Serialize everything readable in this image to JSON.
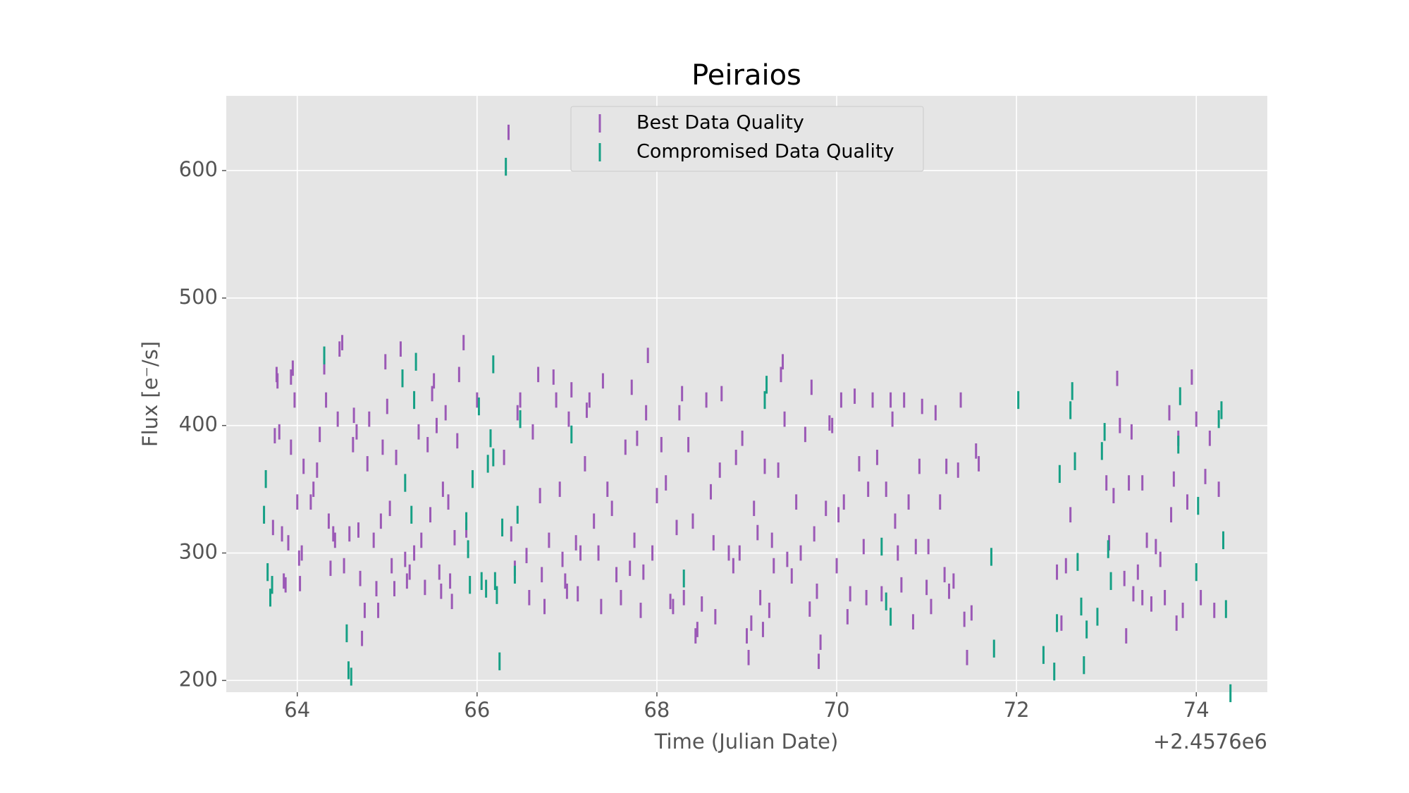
{
  "chart_data": {
    "type": "errorbar",
    "title": "Peiraios",
    "xlabel": "Time (Julian Date)",
    "ylabel": "Flux [e⁻/s]",
    "x_offset_label": "+2.4576e6",
    "xlim": [
      2457663.21,
      2457674.79
    ],
    "ylim": [
      190.8,
      658.6
    ],
    "xticks": [
      {
        "value": 2457664,
        "label": "64"
      },
      {
        "value": 2457666,
        "label": "66"
      },
      {
        "value": 2457668,
        "label": "68"
      },
      {
        "value": 2457670,
        "label": "70"
      },
      {
        "value": 2457672,
        "label": "72"
      },
      {
        "value": 2457674,
        "label": "74"
      }
    ],
    "yticks": [
      200,
      300,
      400,
      500,
      600
    ],
    "grid": true,
    "legend": "upper center",
    "series": [
      {
        "name": "Best Data Quality",
        "color": "#9b59b6",
        "yerr": 6,
        "x": [
          2457663.77,
          2457663.78,
          2457663.75,
          2457663.8,
          2457663.73,
          2457663.83,
          2457663.85,
          2457663.87,
          2457663.9,
          2457663.93,
          2457663.95,
          2457663.93,
          2457663.97,
          2457664.0,
          2457664.02,
          2457664.03,
          2457664.05,
          2457664.07,
          2457664.15,
          2457664.18,
          2457664.22,
          2457664.25,
          2457664.3,
          2457664.32,
          2457664.35,
          2457664.37,
          2457664.4,
          2457664.42,
          2457664.45,
          2457664.47,
          2457664.5,
          2457664.52,
          2457664.58,
          2457664.62,
          2457664.63,
          2457664.66,
          2457664.68,
          2457664.7,
          2457664.72,
          2457664.75,
          2457664.78,
          2457664.8,
          2457664.85,
          2457664.88,
          2457664.9,
          2457664.93,
          2457664.95,
          2457664.98,
          2457665.0,
          2457665.03,
          2457665.05,
          2457665.08,
          2457665.1,
          2457665.15,
          2457665.2,
          2457665.22,
          2457665.25,
          2457665.3,
          2457665.35,
          2457665.38,
          2457665.42,
          2457665.45,
          2457665.48,
          2457665.5,
          2457665.52,
          2457665.55,
          2457665.58,
          2457665.6,
          2457665.62,
          2457665.65,
          2457665.68,
          2457665.7,
          2457665.72,
          2457665.75,
          2457665.78,
          2457665.8,
          2457665.85,
          2457665.88,
          2457666.0,
          2457666.3,
          2457666.35,
          2457666.38,
          2457666.42,
          2457666.45,
          2457666.48,
          2457666.55,
          2457666.58,
          2457666.62,
          2457666.68,
          2457666.7,
          2457666.72,
          2457666.75,
          2457666.8,
          2457666.85,
          2457666.88,
          2457666.92,
          2457666.95,
          2457666.98,
          2457667.0,
          2457667.02,
          2457667.05,
          2457667.1,
          2457667.12,
          2457667.15,
          2457667.2,
          2457667.22,
          2457667.25,
          2457667.3,
          2457667.35,
          2457667.38,
          2457667.4,
          2457667.45,
          2457667.5,
          2457667.55,
          2457667.6,
          2457667.65,
          2457667.7,
          2457667.72,
          2457667.75,
          2457667.78,
          2457667.82,
          2457667.85,
          2457667.88,
          2457667.9,
          2457667.95,
          2457668.0,
          2457668.05,
          2457668.1,
          2457668.15,
          2457668.18,
          2457668.22,
          2457668.25,
          2457668.28,
          2457668.3,
          2457668.35,
          2457668.4,
          2457668.43,
          2457668.45,
          2457668.5,
          2457668.55,
          2457668.6,
          2457668.63,
          2457668.65,
          2457668.7,
          2457668.72,
          2457668.8,
          2457668.85,
          2457668.88,
          2457668.92,
          2457668.95,
          2457669.0,
          2457669.02,
          2457669.05,
          2457669.08,
          2457669.12,
          2457669.15,
          2457669.18,
          2457669.2,
          2457669.25,
          2457669.28,
          2457669.3,
          2457669.35,
          2457669.38,
          2457669.4,
          2457669.42,
          2457669.45,
          2457669.5,
          2457669.55,
          2457669.6,
          2457669.65,
          2457669.7,
          2457669.72,
          2457669.75,
          2457669.78,
          2457669.8,
          2457669.82,
          2457669.88,
          2457669.92,
          2457669.95,
          2457670.0,
          2457670.02,
          2457670.05,
          2457670.08,
          2457670.12,
          2457670.15,
          2457670.2,
          2457670.25,
          2457670.3,
          2457670.33,
          2457670.35,
          2457670.4,
          2457670.45,
          2457670.5,
          2457670.55,
          2457670.6,
          2457670.62,
          2457670.65,
          2457670.68,
          2457670.72,
          2457670.75,
          2457670.8,
          2457670.85,
          2457670.88,
          2457670.92,
          2457670.95,
          2457671.0,
          2457671.02,
          2457671.05,
          2457671.1,
          2457671.15,
          2457671.2,
          2457671.22,
          2457671.25,
          2457671.3,
          2457671.35,
          2457671.38,
          2457671.42,
          2457671.45,
          2457671.5,
          2457671.55,
          2457671.58,
          2457672.45,
          2457672.5,
          2457672.55,
          2457672.6,
          2457673.0,
          2457673.03,
          2457673.08,
          2457673.12,
          2457673.15,
          2457673.2,
          2457673.22,
          2457673.25,
          2457673.28,
          2457673.3,
          2457673.35,
          2457673.4,
          2457673.4,
          2457673.45,
          2457673.5,
          2457673.55,
          2457673.6,
          2457673.65,
          2457673.7,
          2457673.72,
          2457673.75,
          2457673.78,
          2457673.8,
          2457673.85,
          2457673.9,
          2457673.95,
          2457674.0,
          2457674.05,
          2457674.1,
          2457674.15,
          2457674.2,
          2457674.25
        ],
        "values": [
          440,
          435,
          392,
          395,
          320,
          315,
          278,
          275,
          308,
          438,
          445,
          383,
          420,
          340,
          296,
          276,
          300,
          368,
          340,
          350,
          365,
          393,
          446,
          420,
          325,
          288,
          315,
          310,
          405,
          460,
          465,
          290,
          315,
          385,
          408,
          395,
          318,
          280,
          233,
          255,
          370,
          405,
          310,
          272,
          255,
          325,
          383,
          450,
          415,
          335,
          290,
          272,
          375,
          460,
          295,
          278,
          285,
          300,
          395,
          310,
          273,
          385,
          330,
          425,
          435,
          400,
          285,
          270,
          350,
          410,
          340,
          278,
          262,
          312,
          388,
          440,
          465,
          318,
          420,
          375,
          630,
          315,
          288,
          410,
          420,
          298,
          265,
          395,
          440,
          345,
          283,
          258,
          310,
          438,
          420,
          350,
          295,
          278,
          270,
          405,
          428,
          308,
          268,
          300,
          370,
          412,
          420,
          325,
          300,
          258,
          435,
          350,
          335,
          283,
          265,
          383,
          288,
          430,
          310,
          390,
          255,
          285,
          410,
          455,
          300,
          345,
          385,
          355,
          262,
          258,
          320,
          410,
          425,
          265,
          385,
          325,
          235,
          240,
          260,
          420,
          348,
          308,
          250,
          365,
          425,
          300,
          290,
          375,
          300,
          390,
          235,
          218,
          245,
          335,
          316,
          265,
          240,
          368,
          255,
          310,
          290,
          365,
          440,
          450,
          405,
          295,
          282,
          340,
          300,
          393,
          256,
          430,
          315,
          270,
          215,
          230,
          335,
          402,
          400,
          290,
          330,
          420,
          340,
          250,
          268,
          423,
          370,
          305,
          265,
          350,
          420,
          375,
          268,
          350,
          420,
          405,
          325,
          300,
          275,
          420,
          340,
          246,
          305,
          368,
          415,
          273,
          305,
          258,
          410,
          340,
          283,
          368,
          270,
          278,
          365,
          420,
          248,
          218,
          253,
          380,
          370,
          285,
          245,
          290,
          330,
          355,
          308,
          345,
          437,
          400,
          280,
          235,
          355,
          395,
          268,
          285,
          355,
          265,
          310,
          260,
          305,
          295,
          265,
          410,
          330,
          358,
          245,
          390,
          255,
          340,
          438,
          405,
          265,
          360,
          390,
          255,
          350
        ]
      },
      {
        "name": "Compromised Data Quality",
        "color": "#16a085",
        "yerr": 7,
        "x": [
          2457663.63,
          2457663.65,
          2457663.67,
          2457663.7,
          2457663.72,
          2457664.3,
          2457664.55,
          2457664.57,
          2457664.6,
          2457665.17,
          2457665.2,
          2457665.27,
          2457665.3,
          2457665.32,
          2457665.88,
          2457665.9,
          2457665.92,
          2457665.95,
          2457666.02,
          2457666.05,
          2457666.1,
          2457666.12,
          2457666.15,
          2457666.18,
          2457666.18,
          2457666.2,
          2457666.22,
          2457666.25,
          2457666.28,
          2457666.32,
          2457666.42,
          2457666.45,
          2457666.48,
          2457667.05,
          2457668.3,
          2457669.2,
          2457669.22,
          2457670.5,
          2457670.55,
          2457670.6,
          2457671.72,
          2457671.75,
          2457672.02,
          2457672.3,
          2457672.42,
          2457672.45,
          2457672.48,
          2457672.6,
          2457672.62,
          2457672.65,
          2457672.68,
          2457672.72,
          2457672.75,
          2457672.78,
          2457672.9,
          2457672.95,
          2457672.98,
          2457673.02,
          2457673.05,
          2457673.8,
          2457673.82,
          2457674.0,
          2457674.02,
          2457674.25,
          2457674.28,
          2457674.3,
          2457674.33,
          2457674.38
        ],
        "values": [
          330,
          358,
          285,
          265,
          275,
          455,
          237,
          208,
          203,
          437,
          355,
          330,
          420,
          450,
          325,
          303,
          275,
          358,
          415,
          278,
          272,
          370,
          390,
          375,
          448,
          278,
          267,
          215,
          320,
          603,
          283,
          330,
          405,
          393,
          280,
          420,
          432,
          305,
          262,
          250,
          297,
          225,
          420,
          220,
          207,
          245,
          362,
          412,
          427,
          372,
          293,
          258,
          212,
          240,
          250,
          380,
          395,
          303,
          278,
          385,
          423,
          285,
          337,
          405,
          412,
          310,
          256,
          190
        ]
      }
    ]
  }
}
